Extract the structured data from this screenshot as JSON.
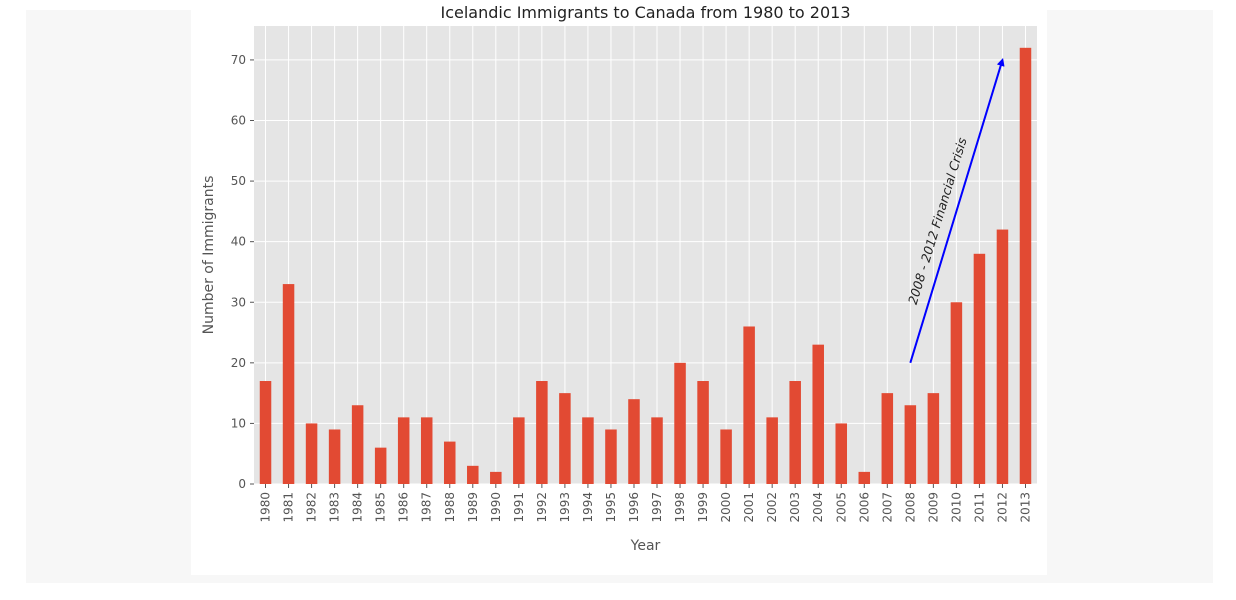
{
  "chart_data": {
    "type": "bar",
    "title": "Icelandic Immigrants to Canada from 1980 to 2013",
    "xlabel": "Year",
    "ylabel": "Number of Immigrants",
    "categories": [
      "1980",
      "1981",
      "1982",
      "1983",
      "1984",
      "1985",
      "1986",
      "1987",
      "1988",
      "1989",
      "1990",
      "1991",
      "1992",
      "1993",
      "1994",
      "1995",
      "1996",
      "1997",
      "1998",
      "1999",
      "2000",
      "2001",
      "2002",
      "2003",
      "2004",
      "2005",
      "2006",
      "2007",
      "2008",
      "2009",
      "2010",
      "2011",
      "2012",
      "2013"
    ],
    "values": [
      17,
      33,
      10,
      9,
      13,
      6,
      11,
      11,
      7,
      3,
      2,
      11,
      17,
      15,
      11,
      9,
      14,
      11,
      20,
      17,
      9,
      26,
      11,
      17,
      23,
      10,
      2,
      15,
      13,
      15,
      30,
      38,
      42,
      72
    ],
    "ylim": [
      0,
      75.6
    ],
    "yticks": [
      0,
      10,
      20,
      30,
      40,
      50,
      60,
      70
    ],
    "grid": true,
    "bar_color": "#e24a33",
    "background_color": "#e5e5e5",
    "annotation": {
      "text": "2008 - 2012 Financial Crisis",
      "arrow_from": {
        "x": "2008",
        "y": 20
      },
      "arrow_to": {
        "x": "2012",
        "y": 70
      },
      "arrow_color": "#0000ff"
    }
  }
}
